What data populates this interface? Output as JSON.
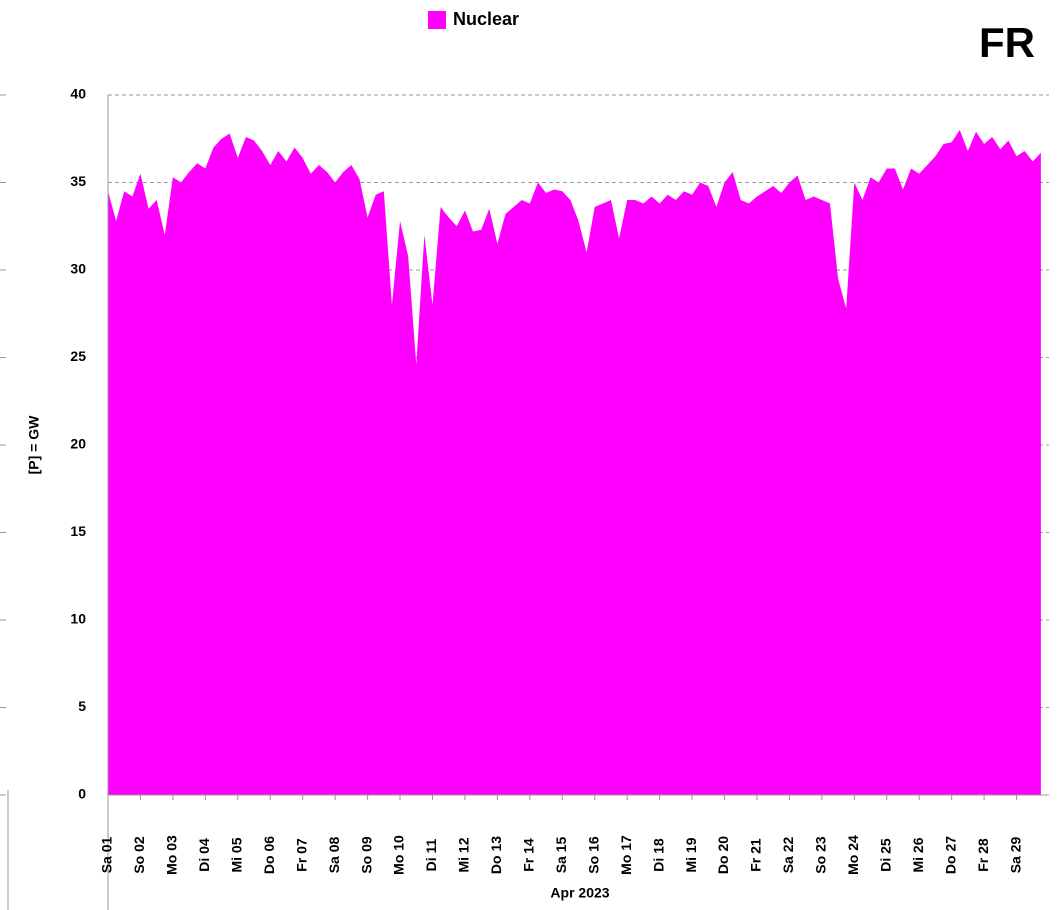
{
  "chart_data": {
    "type": "area",
    "title": "FR",
    "ylabel": "[P] = GW",
    "xlabel": "Apr 2023",
    "series": [
      {
        "name": "Nuclear",
        "color": "#ff00ff",
        "values": [
          34.5,
          32.8,
          34.5,
          34.2,
          35.5,
          33.5,
          34.0,
          32.0,
          35.3,
          35.0,
          35.6,
          36.1,
          35.8,
          37.0,
          37.5,
          37.8,
          36.4,
          37.6,
          37.4,
          36.8,
          36.0,
          36.8,
          36.2,
          37.0,
          36.4,
          35.5,
          36.0,
          35.6,
          35.0,
          35.6,
          36.0,
          35.2,
          33.0,
          34.3,
          34.5,
          28.0,
          32.8,
          30.8,
          24.6,
          32.0,
          28.0,
          33.6,
          33.0,
          32.5,
          33.4,
          32.2,
          32.3,
          33.5,
          31.5,
          33.2,
          33.6,
          34.0,
          33.8,
          35.0,
          34.4,
          34.6,
          34.5,
          34.0,
          32.8,
          31.0,
          33.6,
          33.8,
          34.0,
          31.8,
          34.0,
          34.0,
          33.8,
          34.2,
          33.8,
          34.3,
          34.0,
          34.5,
          34.3,
          35.0,
          34.8,
          33.6,
          35.0,
          35.6,
          34.0,
          33.8,
          34.2,
          34.5,
          34.8,
          34.4,
          35.0,
          35.4,
          34.0,
          34.2,
          34.0,
          33.8,
          29.5,
          27.8,
          35.0,
          34.0,
          35.3,
          35.0,
          35.8,
          35.8,
          34.6,
          35.8,
          35.5,
          36.0,
          36.5,
          37.2,
          37.3,
          38.0,
          36.8,
          37.9,
          37.2,
          37.6,
          36.9,
          37.4,
          36.5,
          36.8,
          36.2,
          36.7
        ]
      }
    ],
    "x": [
      1,
      1.25,
      1.5,
      1.75,
      2,
      2.25,
      2.5,
      2.75,
      3,
      3.25,
      3.5,
      3.75,
      4,
      4.25,
      4.5,
      4.75,
      5,
      5.25,
      5.5,
      5.75,
      6,
      6.25,
      6.5,
      6.75,
      7,
      7.25,
      7.5,
      7.75,
      8,
      8.25,
      8.5,
      8.75,
      9,
      9.25,
      9.5,
      9.75,
      10,
      10.25,
      10.5,
      10.75,
      11,
      11.25,
      11.5,
      11.75,
      12,
      12.25,
      12.5,
      12.75,
      13,
      13.25,
      13.5,
      13.75,
      14,
      14.25,
      14.5,
      14.75,
      15,
      15.25,
      15.5,
      15.75,
      16,
      16.25,
      16.5,
      16.75,
      17,
      17.25,
      17.5,
      17.75,
      18,
      18.25,
      18.5,
      18.75,
      19,
      19.25,
      19.5,
      19.75,
      20,
      20.25,
      20.5,
      20.75,
      21,
      21.25,
      21.5,
      21.75,
      22,
      22.25,
      22.5,
      22.75,
      23,
      23.25,
      23.5,
      23.75,
      24,
      24.25,
      24.5,
      24.75,
      25,
      25.25,
      25.5,
      25.75,
      26,
      26.25,
      26.5,
      26.75,
      27,
      27.25,
      27.5,
      27.75,
      28,
      28.25,
      28.5,
      28.75,
      29,
      29.25,
      29.5,
      29.75
    ],
    "xlim": [
      1,
      30
    ],
    "xticks": [
      {
        "value": 1,
        "label": "Sa 01"
      },
      {
        "value": 2,
        "label": "So 02"
      },
      {
        "value": 3,
        "label": "Mo 03"
      },
      {
        "value": 4,
        "label": "Di 04"
      },
      {
        "value": 5,
        "label": "Mi 05"
      },
      {
        "value": 6,
        "label": "Do 06"
      },
      {
        "value": 7,
        "label": "Fr 07"
      },
      {
        "value": 8,
        "label": "Sa 08"
      },
      {
        "value": 9,
        "label": "So 09"
      },
      {
        "value": 10,
        "label": "Mo 10"
      },
      {
        "value": 11,
        "label": "Di 11"
      },
      {
        "value": 12,
        "label": "Mi 12"
      },
      {
        "value": 13,
        "label": "Do 13"
      },
      {
        "value": 14,
        "label": "Fr 14"
      },
      {
        "value": 15,
        "label": "Sa 15"
      },
      {
        "value": 16,
        "label": "So 16"
      },
      {
        "value": 17,
        "label": "Mo 17"
      },
      {
        "value": 18,
        "label": "Di 18"
      },
      {
        "value": 19,
        "label": "Mi 19"
      },
      {
        "value": 20,
        "label": "Do 20"
      },
      {
        "value": 21,
        "label": "Fr 21"
      },
      {
        "value": 22,
        "label": "Sa 22"
      },
      {
        "value": 23,
        "label": "So 23"
      },
      {
        "value": 24,
        "label": "Mo 24"
      },
      {
        "value": 25,
        "label": "Di 25"
      },
      {
        "value": 26,
        "label": "Mi 26"
      },
      {
        "value": 27,
        "label": "Do 27"
      },
      {
        "value": 28,
        "label": "Fr 28"
      },
      {
        "value": 29,
        "label": "Sa 29"
      }
    ],
    "ylim": [
      0,
      40
    ],
    "yticks": [
      0,
      5,
      10,
      15,
      20,
      25,
      30,
      35,
      40
    ],
    "grid": true
  }
}
